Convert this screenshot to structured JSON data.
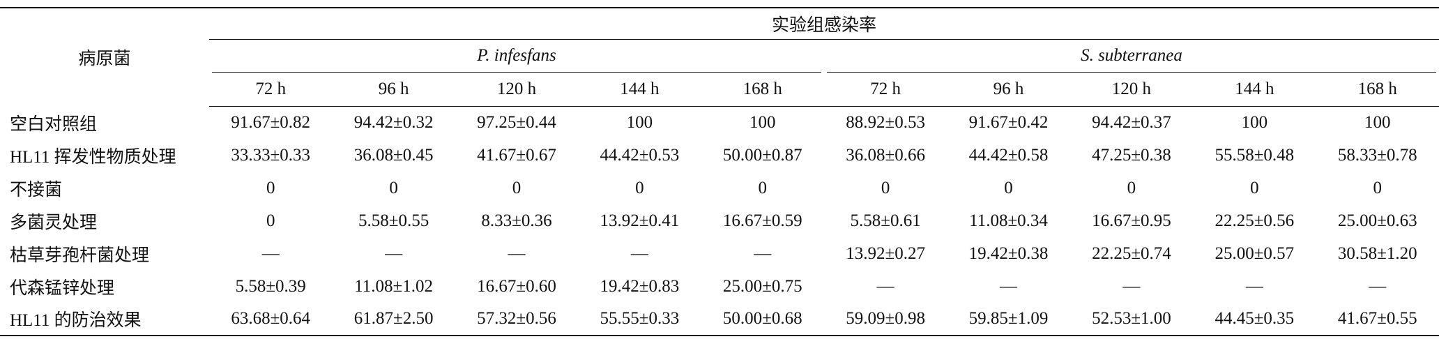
{
  "header": {
    "row_label": "病原菌",
    "group_title": "实验组感染率",
    "groups": [
      "P. infesfans",
      "S. subterranea"
    ],
    "times": [
      "72 h",
      "96 h",
      "120 h",
      "144 h",
      "168 h",
      "72 h",
      "96 h",
      "120 h",
      "144 h",
      "168 h"
    ]
  },
  "table": {
    "rows": [
      [
        "空白对照组",
        "91.67±0.82",
        "94.42±0.32",
        "97.25±0.44",
        "100",
        "100",
        "88.92±0.53",
        "91.67±0.42",
        "94.42±0.37",
        "100",
        "100"
      ],
      [
        "HL11 挥发性物质处理",
        "33.33±0.33",
        "36.08±0.45",
        "41.67±0.67",
        "44.42±0.53",
        "50.00±0.87",
        "36.08±0.66",
        "44.42±0.58",
        "47.25±0.38",
        "55.58±0.48",
        "58.33±0.78"
      ],
      [
        "不接菌",
        "0",
        "0",
        "0",
        "0",
        "0",
        "0",
        "0",
        "0",
        "0",
        "0"
      ],
      [
        "多菌灵处理",
        "0",
        "5.58±0.55",
        "8.33±0.36",
        "13.92±0.41",
        "16.67±0.59",
        "5.58±0.61",
        "11.08±0.34",
        "16.67±0.95",
        "22.25±0.56",
        "25.00±0.63"
      ],
      [
        "枯草芽孢杆菌处理",
        "—",
        "—",
        "—",
        "—",
        "—",
        "13.92±0.27",
        "19.42±0.38",
        "22.25±0.74",
        "25.00±0.57",
        "30.58±1.20"
      ],
      [
        "代森锰锌处理",
        "5.58±0.39",
        "11.08±1.02",
        "16.67±0.60",
        "19.42±0.83",
        "25.00±0.75",
        "—",
        "—",
        "—",
        "—",
        "—"
      ],
      [
        "HL11 的防治效果",
        "63.68±0.64",
        "61.87±2.50",
        "57.32±0.56",
        "55.55±0.33",
        "50.00±0.68",
        "59.09±0.98",
        "59.85±1.09",
        "52.53±1.00",
        "44.45±0.35",
        "41.67±0.55"
      ]
    ]
  }
}
